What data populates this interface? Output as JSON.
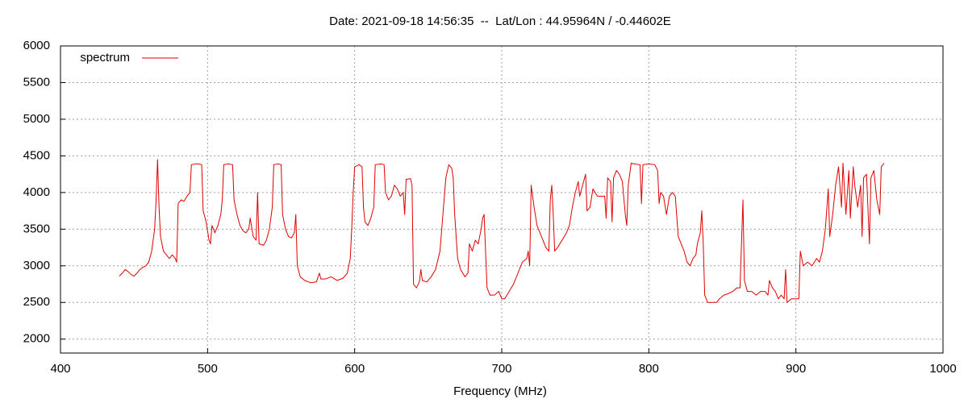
{
  "chart_data": {
    "type": "line",
    "title": "Date: 2021-09-18 14:56:35  --  Lat/Lon : 44.95964N / -0.44602E",
    "x_label": "Frequency (MHz)",
    "xlim": [
      400,
      1000
    ],
    "xticks": [
      400,
      500,
      600,
      700,
      800,
      900,
      1000
    ],
    "ylim": [
      1810,
      6000
    ],
    "yticks": [
      2000,
      2500,
      3000,
      3500,
      4000,
      4500,
      5000,
      5500,
      6000
    ],
    "grid": true,
    "legend": "top-left",
    "x": [
      440,
      442,
      444,
      446,
      448,
      450,
      452,
      454,
      456,
      458,
      460,
      462,
      464,
      465,
      466,
      467,
      468,
      470,
      472,
      474,
      476,
      478,
      479,
      480,
      482,
      484,
      486,
      488,
      489,
      492,
      494,
      496,
      497,
      499,
      501,
      502,
      503,
      505,
      507,
      509,
      510,
      511,
      514,
      517,
      518,
      520,
      522,
      524,
      526,
      528,
      529,
      531,
      533,
      534,
      535,
      538,
      540,
      542,
      544,
      545,
      548,
      550,
      551,
      553,
      555,
      557,
      559,
      560,
      561,
      563,
      566,
      570,
      574,
      576,
      577,
      580,
      584,
      588,
      592,
      595,
      597,
      598,
      599,
      600,
      603,
      605,
      606,
      607,
      609,
      611,
      613,
      614,
      618,
      620,
      621,
      623,
      625,
      627,
      629,
      631,
      633,
      634,
      635,
      638,
      639,
      640,
      642,
      644,
      645,
      646,
      649,
      652,
      655,
      658,
      660,
      662,
      664,
      666,
      667,
      668,
      670,
      672,
      675,
      677,
      678,
      680,
      682,
      684,
      686,
      687,
      688,
      689,
      690,
      692,
      695,
      698,
      700,
      702,
      705,
      708,
      711,
      714,
      717,
      718,
      719,
      720,
      722,
      724,
      727,
      730,
      732,
      733,
      734,
      735,
      736,
      738,
      741,
      744,
      746,
      748,
      750,
      752,
      753,
      755,
      757,
      758,
      760,
      762,
      765,
      768,
      770,
      771,
      772,
      774,
      775,
      776,
      778,
      780,
      782,
      784,
      785,
      786,
      788,
      790,
      794,
      795,
      796,
      800,
      804,
      806,
      807,
      808,
      810,
      812,
      814,
      816,
      818,
      820,
      822,
      824,
      826,
      828,
      830,
      832,
      833,
      835,
      836,
      837,
      838,
      840,
      843,
      846,
      848,
      851,
      854,
      857,
      860,
      862,
      864,
      865,
      867,
      870,
      873,
      876,
      879,
      881,
      882,
      884,
      886,
      888,
      890,
      892,
      893,
      894,
      897,
      900,
      902,
      903,
      905,
      908,
      911,
      914,
      916,
      918,
      920,
      922,
      923,
      925,
      927,
      929,
      931,
      932,
      934,
      936,
      937,
      939,
      940,
      942,
      944,
      945,
      946,
      948,
      950,
      951,
      953,
      955,
      957,
      958,
      960
    ],
    "series": [
      {
        "name": "spectrum",
        "color": "#e00000",
        "values": [
          2860,
          2900,
          2950,
          2920,
          2880,
          2860,
          2900,
          2950,
          2980,
          3000,
          3050,
          3200,
          3500,
          3900,
          4450,
          3800,
          3400,
          3200,
          3150,
          3100,
          3150,
          3100,
          3050,
          3850,
          3900,
          3880,
          3950,
          4000,
          4380,
          4390,
          4390,
          4380,
          3750,
          3600,
          3350,
          3300,
          3550,
          3450,
          3550,
          3700,
          3900,
          4380,
          4390,
          4380,
          3900,
          3700,
          3550,
          3480,
          3450,
          3500,
          3650,
          3400,
          3350,
          4000,
          3300,
          3280,
          3350,
          3500,
          3800,
          4380,
          4390,
          4380,
          3700,
          3500,
          3400,
          3380,
          3450,
          3700,
          3000,
          2850,
          2800,
          2770,
          2780,
          2900,
          2820,
          2820,
          2850,
          2800,
          2830,
          2900,
          3100,
          3500,
          4000,
          4350,
          4380,
          4350,
          3800,
          3600,
          3550,
          3650,
          3800,
          4380,
          4390,
          4380,
          4000,
          3900,
          3950,
          4100,
          4050,
          3950,
          4000,
          3700,
          4180,
          4190,
          4100,
          2750,
          2700,
          2780,
          2950,
          2800,
          2780,
          2850,
          2950,
          3200,
          3700,
          4200,
          4380,
          4330,
          4200,
          3700,
          3100,
          2950,
          2850,
          2900,
          3300,
          3200,
          3350,
          3300,
          3500,
          3650,
          3700,
          3200,
          2700,
          2600,
          2600,
          2650,
          2550,
          2550,
          2650,
          2750,
          2900,
          3050,
          3100,
          3200,
          3000,
          4100,
          3800,
          3550,
          3400,
          3250,
          3200,
          3900,
          4100,
          3700,
          3200,
          3250,
          3350,
          3450,
          3550,
          3800,
          4000,
          4150,
          3950,
          4100,
          4250,
          3750,
          3800,
          4050,
          3950,
          3950,
          3950,
          3650,
          4200,
          4150,
          3600,
          4200,
          4300,
          4250,
          4150,
          3700,
          3550,
          4100,
          4400,
          4390,
          4380,
          3850,
          4380,
          4390,
          4380,
          4300,
          3850,
          4000,
          3950,
          3700,
          3950,
          4000,
          3950,
          3400,
          3300,
          3200,
          3050,
          3000,
          3100,
          3150,
          3300,
          3450,
          3750,
          3300,
          2600,
          2500,
          2500,
          2500,
          2550,
          2600,
          2620,
          2650,
          2700,
          2700,
          3900,
          2800,
          2650,
          2650,
          2600,
          2650,
          2650,
          2600,
          2800,
          2700,
          2650,
          2550,
          2600,
          2550,
          2950,
          2500,
          2550,
          2550,
          2550,
          3200,
          3000,
          3050,
          3000,
          3100,
          3050,
          3200,
          3500,
          4050,
          3400,
          3700,
          4100,
          4350,
          3800,
          4400,
          3700,
          4300,
          3650,
          4350,
          4100,
          3800,
          4100,
          3400,
          4200,
          4250,
          3300,
          4200,
          4300,
          3900,
          3700,
          4350,
          4400
        ]
      }
    ]
  }
}
